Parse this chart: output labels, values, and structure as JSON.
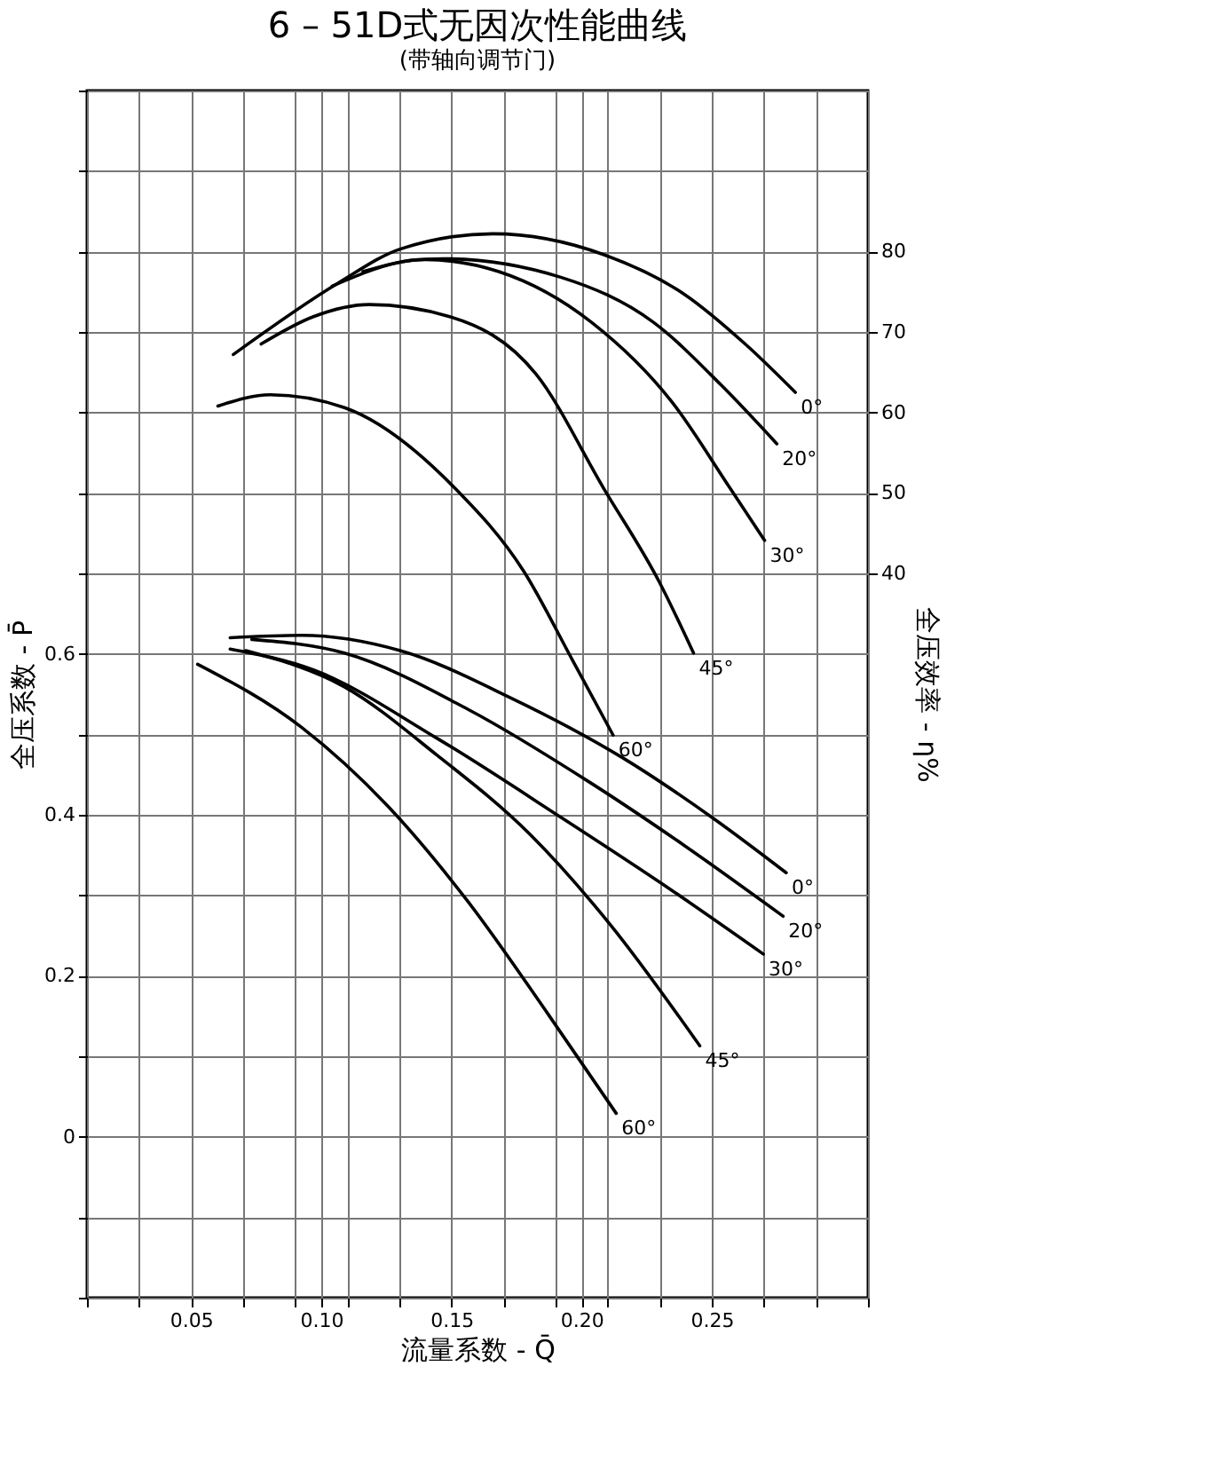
{
  "chart_data": {
    "type": "line",
    "title": "6 – 51D式无因次性能曲线",
    "subtitle": "(带轴向调节门)",
    "xlabel": "流量系数 - Q̄",
    "ylabel": "全压系数 - P̄",
    "y2label": "全压效率 - η%",
    "xlim": [
      0.01,
      0.31
    ],
    "ylim": [
      -0.2,
      1.3
    ],
    "y2lim": [
      -50,
      100
    ],
    "xticks": [
      {
        "value": 0.01,
        "label": null
      },
      {
        "value": 0.03,
        "label": null
      },
      0.05,
      {
        "value": 0.07,
        "label": null
      },
      {
        "value": 0.09,
        "label": null
      },
      {
        "value": 0.1,
        "label": "0.10"
      },
      {
        "value": 0.11,
        "label": null
      },
      {
        "value": 0.13,
        "label": null
      },
      0.15,
      {
        "value": 0.17,
        "label": null
      },
      {
        "value": 0.19,
        "label": null
      },
      {
        "value": 0.2,
        "label": "0.20"
      },
      {
        "value": 0.21,
        "label": null
      },
      {
        "value": 0.23,
        "label": null
      },
      0.25,
      {
        "value": 0.27,
        "label": null
      },
      {
        "value": 0.29,
        "label": null
      },
      {
        "value": 0.31,
        "label": null
      }
    ],
    "yticks": [
      {
        "value": -0.2,
        "label": null
      },
      {
        "value": -0.1,
        "label": null
      },
      0,
      {
        "value": 0.1,
        "label": null
      },
      0.2,
      {
        "value": 0.3,
        "label": null
      },
      0.4,
      {
        "value": 0.5,
        "label": null
      },
      0.6,
      {
        "value": 0.7,
        "label": null
      },
      {
        "value": 0.8,
        "label": null
      },
      {
        "value": 0.9,
        "label": null
      },
      {
        "value": 1.0,
        "label": null
      },
      {
        "value": 1.1,
        "label": null
      },
      {
        "value": 1.2,
        "label": null
      },
      {
        "value": 1.3,
        "label": null
      }
    ],
    "y2ticks": [
      40,
      50,
      60,
      70,
      80
    ],
    "grid": true,
    "line_style": "solid",
    "series": [
      {
        "name": "0°",
        "color": "#000000",
        "x": [
          0.065,
          0.0923,
          0.1303,
          0.173,
          0.2157,
          0.2513,
          0.2786
        ],
        "values": [
          0.62,
          0.623,
          0.604,
          0.545,
          0.471,
          0.394,
          0.328
        ]
      },
      {
        "name": "20°",
        "color": "#000000",
        "x": [
          0.0733,
          0.1089,
          0.1564,
          0.2038,
          0.2394,
          0.2774
        ],
        "values": [
          0.618,
          0.601,
          0.531,
          0.439,
          0.362,
          0.274
        ]
      },
      {
        "name": "30°",
        "color": "#000000",
        "x": [
          0.065,
          0.097,
          0.1445,
          0.192,
          0.2347,
          0.2698
        ],
        "values": [
          0.606,
          0.58,
          0.495,
          0.397,
          0.306,
          0.227
        ]
      },
      {
        "name": "45°",
        "color": "#000000",
        "x": [
          0.071,
          0.1089,
          0.1445,
          0.1801,
          0.2109,
          0.2454
        ],
        "values": [
          0.604,
          0.559,
          0.474,
          0.376,
          0.264,
          0.113
        ]
      },
      {
        "name": "60°",
        "color": "#000000",
        "x": [
          0.0525,
          0.0923,
          0.1255,
          0.1564,
          0.1872,
          0.2133
        ],
        "values": [
          0.587,
          0.509,
          0.411,
          0.292,
          0.152,
          0.029
        ]
      },
      {
        "name": "0°",
        "color": "#000000",
        "axis": "y2",
        "x": [
          0.0662,
          0.1066,
          0.1303,
          0.1659,
          0.2086,
          0.2394,
          0.2632,
          0.2821
        ],
        "values": [
          67.2,
          76.1,
          80.3,
          82.2,
          79.6,
          74.7,
          68.4,
          62.5
        ]
      },
      {
        "name": "20°",
        "color": "#000000",
        "axis": "y2",
        "x": [
          0.1042,
          0.135,
          0.1469,
          0.192,
          0.2276,
          0.2536,
          0.275
        ],
        "values": [
          75.7,
          78.9,
          79.1,
          76.8,
          71.2,
          63.4,
          56.1
        ]
      },
      {
        "name": "30°",
        "color": "#000000",
        "axis": "y2",
        "x": [
          0.116,
          0.1398,
          0.1682,
          0.2038,
          0.2347,
          0.2572,
          0.2703
        ],
        "values": [
          77.5,
          79.0,
          77.5,
          71.2,
          61.3,
          50.5,
          44.1
        ]
      },
      {
        "name": "45°",
        "color": "#000000",
        "axis": "y2",
        "x": [
          0.0769,
          0.097,
          0.1184,
          0.1493,
          0.1824,
          0.2086,
          0.2299,
          0.243
        ],
        "values": [
          68.5,
          71.9,
          73.4,
          71.9,
          64.8,
          50.5,
          38.9,
          30.1
        ]
      },
      {
        "name": "60°",
        "color": "#000000",
        "axis": "y2",
        "x": [
          0.0603,
          0.0805,
          0.1089,
          0.1516,
          0.1777,
          0.1967,
          0.2121
        ],
        "values": [
          60.8,
          62.2,
          60.6,
          50.5,
          40.3,
          29.1,
          19.9
        ]
      }
    ]
  }
}
